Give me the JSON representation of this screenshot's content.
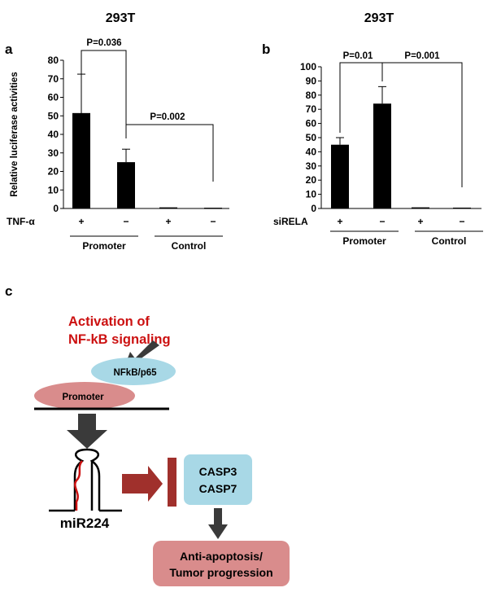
{
  "panel_a": {
    "letter": "a",
    "title": "293T",
    "ylabel": "Relative luciferase activities",
    "yticks": [
      0,
      10,
      20,
      30,
      40,
      50,
      60,
      70,
      80
    ],
    "ylim": [
      0,
      80
    ],
    "condition_label": "TNF-α",
    "conditions": [
      "+",
      "−",
      "+",
      "−"
    ],
    "groups": [
      "Promoter",
      "Control"
    ],
    "pvalues": [
      "P=0.036",
      "P=0.002"
    ]
  },
  "panel_b": {
    "letter": "b",
    "title": "293T",
    "yticks": [
      0,
      10,
      20,
      30,
      40,
      50,
      60,
      70,
      80,
      90,
      100
    ],
    "ylim": [
      0,
      100
    ],
    "condition_label": "siRELA",
    "conditions": [
      "+",
      "−",
      "+",
      "−"
    ],
    "groups": [
      "Promoter",
      "Control"
    ],
    "pvalues": [
      "P=0.01",
      "P=0.001"
    ]
  },
  "chart_data": [
    {
      "type": "bar",
      "title": "293T",
      "ylabel": "Relative luciferase activities",
      "categories": [
        "+",
        "−",
        "+",
        "−"
      ],
      "values": [
        51.5,
        25,
        0.6,
        0.4
      ],
      "errors": [
        21,
        7,
        0.3,
        0.2
      ],
      "ylim": [
        0,
        80
      ],
      "color": "#000000"
    },
    {
      "type": "bar",
      "title": "293T",
      "ylabel": "",
      "categories": [
        "+",
        "−",
        "+",
        "−"
      ],
      "values": [
        45,
        74,
        0.8,
        0.6
      ],
      "errors": [
        5,
        12,
        0.4,
        0.3
      ],
      "ylim": [
        0,
        100
      ],
      "color": "#000000"
    }
  ],
  "panel_c": {
    "letter": "c",
    "activation_line1": "Activation of",
    "activation_line2": "NF-kB signaling",
    "nfkb_label": "NFkB/p65",
    "promoter_label": "Promoter",
    "mirna_label": "miR224",
    "casp3": "CASP3",
    "casp7": "CASP7",
    "outcome_line1": "Anti-apoptosis/",
    "outcome_line2": "Tumor progression",
    "colors": {
      "red_text": "#cc1111",
      "nfkb_fill": "#a8d8e6",
      "promoter_fill": "#d98c8c",
      "casp_fill": "#a8d8e6",
      "outcome_fill": "#d98c8c",
      "inhibit_arrow": "#a0302c",
      "gray_arrow": "#3a3a3a"
    }
  }
}
